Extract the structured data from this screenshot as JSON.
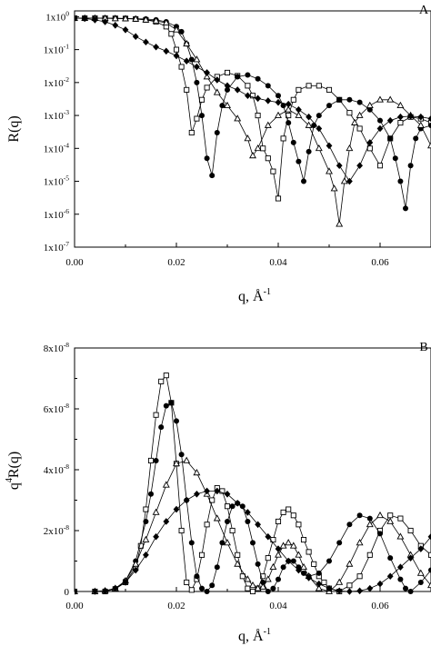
{
  "chart_data": [
    {
      "panel": "A",
      "type": "line",
      "yscale": "log",
      "xlabel": "q, Å",
      "xlabel_exp": "-1",
      "ylabel": "R(q)",
      "xlim": [
        0,
        0.07
      ],
      "ylim": [
        1e-07,
        1.5
      ],
      "x_ticks": [
        "0.00",
        "0.02",
        "0.04",
        "0.06"
      ],
      "y_ticks": [
        {
          "value": 1,
          "mant": "1x10",
          "exp": "0"
        },
        {
          "value": 0.1,
          "mant": "1x10",
          "exp": "-1"
        },
        {
          "value": 0.01,
          "mant": "1x10",
          "exp": "-2"
        },
        {
          "value": 0.001,
          "mant": "1x10",
          "exp": "-3"
        },
        {
          "value": 0.0001,
          "mant": "1x10",
          "exp": "-4"
        },
        {
          "value": 1e-05,
          "mant": "1x10",
          "exp": "-5"
        },
        {
          "value": 1e-06,
          "mant": "1x10",
          "exp": "-6"
        },
        {
          "value": 1e-07,
          "mant": "1x10",
          "exp": "-7"
        }
      ],
      "series": [
        {
          "marker": "open-square",
          "x": [
            0.0,
            0.002,
            0.004,
            0.006,
            0.008,
            0.01,
            0.012,
            0.014,
            0.016,
            0.018,
            0.019,
            0.02,
            0.021,
            0.022,
            0.023,
            0.024,
            0.025,
            0.026,
            0.028,
            0.03,
            0.032,
            0.034,
            0.035,
            0.036,
            0.037,
            0.038,
            0.039,
            0.04,
            0.041,
            0.042,
            0.043,
            0.044,
            0.046,
            0.048,
            0.05,
            0.052,
            0.054,
            0.056,
            0.058,
            0.06,
            0.062,
            0.064,
            0.066,
            0.068,
            0.07
          ],
          "y": [
            0.9,
            0.9,
            0.9,
            0.9,
            0.89,
            0.88,
            0.85,
            0.8,
            0.7,
            0.5,
            0.3,
            0.1,
            0.03,
            0.006,
            0.0003,
            0.0008,
            0.003,
            0.007,
            0.015,
            0.02,
            0.016,
            0.008,
            0.004,
            0.001,
            0.0001,
            5e-05,
            2e-05,
            3e-06,
            0.0002,
            0.001,
            0.003,
            0.006,
            0.008,
            0.008,
            0.006,
            0.003,
            0.0012,
            0.0004,
            0.0001,
            3e-05,
            0.0002,
            0.0006,
            0.0009,
            0.0008,
            0.0006
          ]
        },
        {
          "marker": "filled-circle",
          "x": [
            0.0,
            0.002,
            0.004,
            0.006,
            0.008,
            0.01,
            0.012,
            0.014,
            0.016,
            0.018,
            0.02,
            0.021,
            0.022,
            0.023,
            0.024,
            0.025,
            0.026,
            0.027,
            0.028,
            0.029,
            0.03,
            0.032,
            0.034,
            0.036,
            0.038,
            0.04,
            0.041,
            0.042,
            0.043,
            0.044,
            0.045,
            0.046,
            0.047,
            0.048,
            0.05,
            0.052,
            0.054,
            0.056,
            0.058,
            0.06,
            0.062,
            0.063,
            0.064,
            0.065,
            0.066,
            0.067,
            0.068,
            0.07
          ],
          "y": [
            0.9,
            0.9,
            0.9,
            0.9,
            0.89,
            0.88,
            0.87,
            0.85,
            0.8,
            0.7,
            0.5,
            0.35,
            0.15,
            0.05,
            0.01,
            0.001,
            5e-05,
            1.5e-05,
            0.0003,
            0.002,
            0.006,
            0.015,
            0.017,
            0.013,
            0.008,
            0.004,
            0.002,
            0.0006,
            0.00015,
            4e-05,
            1e-05,
            8e-05,
            0.0005,
            0.001,
            0.002,
            0.003,
            0.003,
            0.0025,
            0.0015,
            0.0007,
            0.0002,
            5e-05,
            1e-05,
            1.5e-06,
            3e-05,
            0.0002,
            0.0004,
            0.0005
          ]
        },
        {
          "marker": "open-triangle",
          "x": [
            0.0,
            0.002,
            0.004,
            0.006,
            0.008,
            0.01,
            0.012,
            0.014,
            0.016,
            0.018,
            0.02,
            0.022,
            0.024,
            0.026,
            0.028,
            0.03,
            0.032,
            0.034,
            0.035,
            0.036,
            0.038,
            0.04,
            0.042,
            0.044,
            0.046,
            0.048,
            0.05,
            0.051,
            0.052,
            0.053,
            0.054,
            0.055,
            0.056,
            0.058,
            0.06,
            0.062,
            0.064,
            0.066,
            0.068,
            0.07
          ],
          "y": [
            0.9,
            0.9,
            0.9,
            0.89,
            0.88,
            0.87,
            0.85,
            0.8,
            0.75,
            0.65,
            0.4,
            0.15,
            0.05,
            0.015,
            0.005,
            0.002,
            0.0008,
            0.0002,
            6e-05,
            0.0001,
            0.0005,
            0.001,
            0.0015,
            0.001,
            0.0005,
            0.0001,
            2e-05,
            6e-06,
            5e-07,
            1e-05,
            0.0001,
            0.0006,
            0.001,
            0.002,
            0.003,
            0.003,
            0.002,
            0.001,
            0.0005,
            0.00012
          ]
        },
        {
          "marker": "filled-diamond",
          "x": [
            0.0,
            0.002,
            0.004,
            0.006,
            0.008,
            0.01,
            0.012,
            0.014,
            0.016,
            0.018,
            0.02,
            0.022,
            0.024,
            0.026,
            0.028,
            0.03,
            0.032,
            0.034,
            0.036,
            0.038,
            0.04,
            0.042,
            0.044,
            0.046,
            0.048,
            0.05,
            0.052,
            0.054,
            0.056,
            0.058,
            0.06,
            0.062,
            0.064,
            0.066,
            0.068,
            0.07
          ],
          "y": [
            0.9,
            0.88,
            0.8,
            0.7,
            0.55,
            0.4,
            0.25,
            0.17,
            0.12,
            0.09,
            0.065,
            0.045,
            0.03,
            0.02,
            0.012,
            0.008,
            0.006,
            0.004,
            0.0033,
            0.0028,
            0.0025,
            0.0022,
            0.0015,
            0.0009,
            0.0004,
            0.00012,
            3e-05,
            1e-05,
            3e-05,
            0.00015,
            0.0004,
            0.0007,
            0.0009,
            0.00095,
            0.0009,
            0.0008
          ]
        }
      ]
    },
    {
      "panel": "B",
      "type": "line",
      "xlabel": "q, Å",
      "xlabel_exp": "-1",
      "ylabel_exp": "4",
      "ylabel_main": "R(q)",
      "ylabel_pre": "q",
      "xlim": [
        0,
        0.07
      ],
      "ylim": [
        0,
        8e-08
      ],
      "x_ticks": [
        "0.00",
        "0.02",
        "0.04",
        "0.06"
      ],
      "y_ticks": [
        {
          "value": 0,
          "mant": "0",
          "exp": ""
        },
        {
          "value": 2e-08,
          "mant": "2x10",
          "exp": "-8"
        },
        {
          "value": 4e-08,
          "mant": "4x10",
          "exp": "-8"
        },
        {
          "value": 6e-08,
          "mant": "6x10",
          "exp": "-8"
        },
        {
          "value": 8e-08,
          "mant": "8x10",
          "exp": "-8"
        }
      ],
      "series": [
        {
          "marker": "open-square",
          "x": [
            0.0,
            0.004,
            0.006,
            0.008,
            0.01,
            0.012,
            0.013,
            0.014,
            0.015,
            0.016,
            0.017,
            0.018,
            0.019,
            0.02,
            0.021,
            0.022,
            0.023,
            0.024,
            0.025,
            0.026,
            0.027,
            0.028,
            0.029,
            0.03,
            0.031,
            0.032,
            0.033,
            0.034,
            0.035,
            0.036,
            0.037,
            0.038,
            0.039,
            0.04,
            0.041,
            0.042,
            0.043,
            0.044,
            0.045,
            0.046,
            0.047,
            0.048,
            0.049,
            0.05,
            0.052,
            0.054,
            0.056,
            0.058,
            0.06,
            0.062,
            0.064,
            0.066,
            0.068,
            0.07
          ],
          "y": [
            0,
            0,
            0.0,
            8e-10,
            3e-09,
            8e-09,
            1.5e-08,
            2.7e-08,
            4.3e-08,
            5.8e-08,
            6.9e-08,
            7.1e-08,
            6.2e-08,
            4.2e-08,
            2e-08,
            3e-09,
            5e-10,
            4e-09,
            1.2e-08,
            2.2e-08,
            3e-08,
            3.4e-08,
            3.3e-08,
            2.8e-08,
            2e-08,
            1.2e-08,
            5e-09,
            1e-09,
            0.0,
            1e-09,
            5e-09,
            1.1e-08,
            1.7e-08,
            2.3e-08,
            2.6e-08,
            2.7e-08,
            2.5e-08,
            2.2e-08,
            1.7e-08,
            1.3e-08,
            9e-09,
            5e-09,
            3e-09,
            1e-09,
            0.0,
            2e-09,
            5e-09,
            1.2e-08,
            2e-08,
            2.5e-08,
            2.4e-08,
            2e-08,
            1.5e-08,
            1.2e-08
          ]
        },
        {
          "marker": "filled-circle",
          "x": [
            0.0,
            0.004,
            0.006,
            0.008,
            0.01,
            0.012,
            0.014,
            0.015,
            0.016,
            0.017,
            0.018,
            0.019,
            0.02,
            0.021,
            0.022,
            0.023,
            0.024,
            0.025,
            0.026,
            0.027,
            0.028,
            0.029,
            0.03,
            0.031,
            0.032,
            0.033,
            0.034,
            0.035,
            0.036,
            0.037,
            0.038,
            0.039,
            0.04,
            0.041,
            0.042,
            0.043,
            0.044,
            0.045,
            0.046,
            0.048,
            0.05,
            0.052,
            0.054,
            0.056,
            0.058,
            0.06,
            0.062,
            0.064,
            0.065,
            0.066,
            0.068,
            0.07
          ],
          "y": [
            0,
            0,
            2e-10,
            1e-09,
            3.5e-09,
            1e-08,
            2.3e-08,
            3.2e-08,
            4.3e-08,
            5.4e-08,
            6.1e-08,
            6.2e-08,
            5.6e-08,
            4.5e-08,
            3e-08,
            1.6e-08,
            5e-09,
            1e-09,
            0.0,
            2e-09,
            8e-09,
            1.6e-08,
            2.3e-08,
            2.8e-08,
            2.9e-08,
            2.8e-08,
            2.3e-08,
            1.6e-08,
            9e-09,
            3e-09,
            0.0,
            1e-09,
            4e-09,
            8e-09,
            1e-08,
            1e-08,
            8e-09,
            6e-09,
            5e-09,
            6e-09,
            1e-08,
            1.6e-08,
            2.2e-08,
            2.5e-08,
            2.4e-08,
            1.9e-08,
            1.1e-08,
            4e-09,
            1e-09,
            0.0,
            3e-09,
            7e-09
          ]
        },
        {
          "marker": "open-triangle",
          "x": [
            0.0,
            0.004,
            0.006,
            0.008,
            0.01,
            0.012,
            0.014,
            0.016,
            0.018,
            0.02,
            0.022,
            0.024,
            0.026,
            0.028,
            0.03,
            0.032,
            0.034,
            0.035,
            0.036,
            0.037,
            0.038,
            0.039,
            0.04,
            0.041,
            0.042,
            0.043,
            0.044,
            0.045,
            0.046,
            0.048,
            0.05,
            0.052,
            0.054,
            0.056,
            0.058,
            0.06,
            0.062,
            0.064,
            0.066,
            0.068,
            0.07
          ],
          "y": [
            0,
            0,
            2e-10,
            1e-09,
            3.5e-09,
            9e-09,
            1.7e-08,
            2.6e-08,
            3.5e-08,
            4.2e-08,
            4.3e-08,
            3.9e-08,
            3.2e-08,
            2.4e-08,
            1.6e-08,
            9e-09,
            4e-09,
            2e-09,
            1e-09,
            1.5e-09,
            4e-09,
            8e-09,
            1.2e-08,
            1.5e-08,
            1.6e-08,
            1.5e-08,
            1.2e-08,
            8e-09,
            5e-09,
            1e-09,
            0.0,
            3e-09,
            9e-09,
            1.6e-08,
            2.2e-08,
            2.5e-08,
            2.3e-08,
            1.8e-08,
            1.2e-08,
            6e-09,
            2e-09
          ]
        },
        {
          "marker": "filled-diamond",
          "x": [
            0.0,
            0.004,
            0.006,
            0.008,
            0.01,
            0.012,
            0.014,
            0.016,
            0.018,
            0.02,
            0.022,
            0.024,
            0.026,
            0.028,
            0.03,
            0.032,
            0.034,
            0.036,
            0.038,
            0.04,
            0.042,
            0.044,
            0.046,
            0.048,
            0.05,
            0.052,
            0.054,
            0.056,
            0.058,
            0.06,
            0.062,
            0.064,
            0.066,
            0.068,
            0.07
          ],
          "y": [
            0,
            0,
            2e-10,
            1e-09,
            3e-09,
            7e-09,
            1.2e-08,
            1.8e-08,
            2.3e-08,
            2.7e-08,
            3e-08,
            3.2e-08,
            3.3e-08,
            3.3e-08,
            3.2e-08,
            2.9e-08,
            2.6e-08,
            2.2e-08,
            1.8e-08,
            1.4e-08,
            1e-08,
            7e-09,
            4.5e-09,
            2.5e-09,
            1e-09,
            2e-10,
            0.0,
            2e-10,
            1e-09,
            2.5e-09,
            5e-09,
            8e-09,
            1.1e-08,
            1.4e-08,
            1.8e-08
          ]
        }
      ]
    }
  ]
}
